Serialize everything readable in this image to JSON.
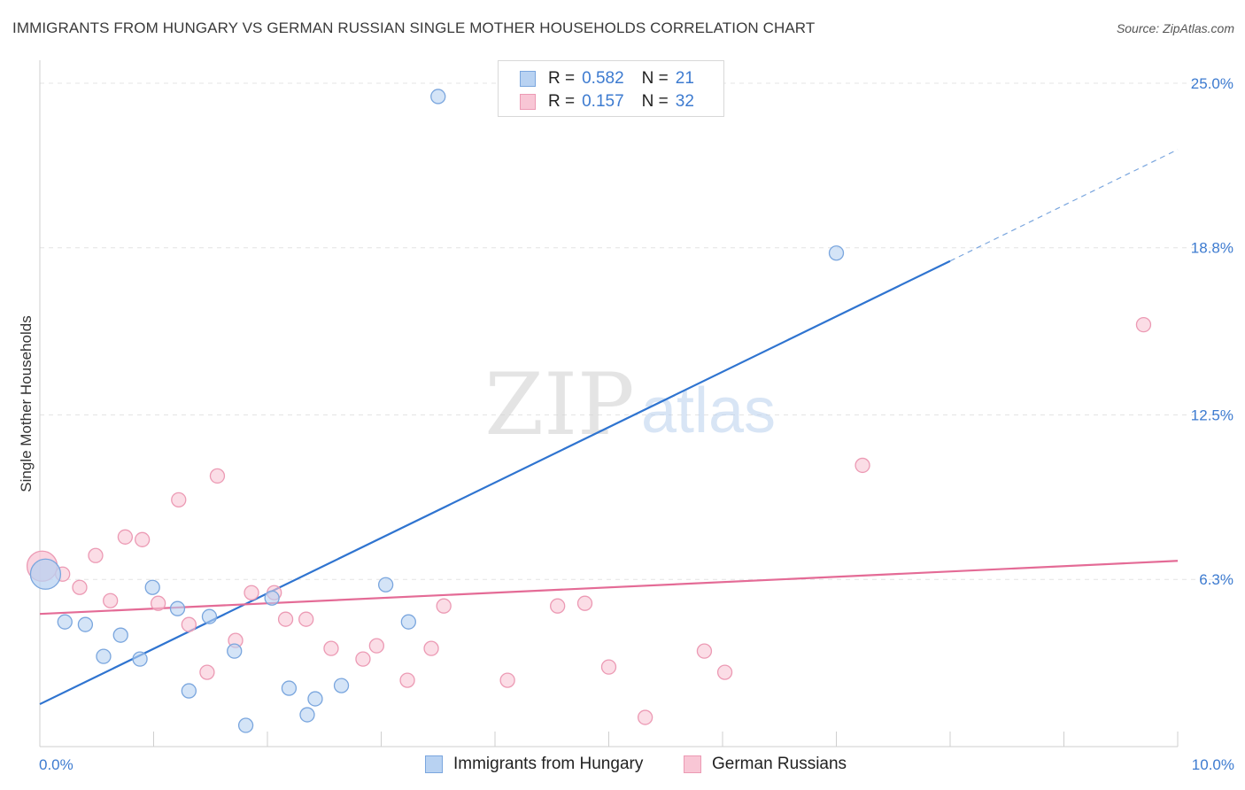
{
  "header": {
    "title": "IMMIGRANTS FROM HUNGARY VS GERMAN RUSSIAN SINGLE MOTHER HOUSEHOLDS CORRELATION CHART",
    "source": "Source: ZipAtlas.com"
  },
  "watermark": {
    "zip": "ZIP",
    "atlas": "atlas"
  },
  "legend": {
    "rows": [
      {
        "r_label": "R =",
        "r_value": "0.582",
        "n_label": "N =",
        "n_value": "21"
      },
      {
        "r_label": "R =",
        "r_value": "0.157",
        "n_label": "N =",
        "n_value": "32"
      }
    ]
  },
  "bottom_legend": {
    "items": [
      "Immigrants from Hungary",
      "German Russians"
    ]
  },
  "colors": {
    "blue_fill": "#b8d2f2",
    "blue_stroke": "#7aa6de",
    "blue_line": "#2f74d0",
    "pink_fill": "#f8c6d5",
    "pink_stroke": "#ec9ab4",
    "pink_line": "#e46b96",
    "tick_text": "#3d7bd0"
  },
  "chart_data": {
    "type": "scatter",
    "title": "IMMIGRANTS FROM HUNGARY VS GERMAN RUSSIAN SINGLE MOTHER HOUSEHOLDS CORRELATION CHART",
    "xlabel": "",
    "ylabel": "Single Mother Households",
    "xlim": [
      0,
      10
    ],
    "ylim": [
      0,
      25.5
    ],
    "x_tick_labels": [
      "0.0%",
      "10.0%"
    ],
    "y_ticks": [
      6.3,
      12.5,
      18.8,
      25.0
    ],
    "y_tick_labels": [
      "6.3%",
      "12.5%",
      "18.8%",
      "25.0%"
    ],
    "series": [
      {
        "name": "Immigrants from Hungary",
        "r": 0.582,
        "n": 21,
        "points": [
          {
            "x": 0.05,
            "y": 6.5,
            "big": true
          },
          {
            "x": 0.22,
            "y": 4.7
          },
          {
            "x": 0.4,
            "y": 4.6
          },
          {
            "x": 0.56,
            "y": 3.4
          },
          {
            "x": 0.71,
            "y": 4.2
          },
          {
            "x": 0.88,
            "y": 3.3
          },
          {
            "x": 0.99,
            "y": 6.0
          },
          {
            "x": 1.21,
            "y": 5.2
          },
          {
            "x": 1.31,
            "y": 2.1
          },
          {
            "x": 1.49,
            "y": 4.9
          },
          {
            "x": 1.71,
            "y": 3.6
          },
          {
            "x": 1.81,
            "y": 0.8
          },
          {
            "x": 2.04,
            "y": 5.6
          },
          {
            "x": 2.19,
            "y": 2.2
          },
          {
            "x": 2.35,
            "y": 1.2
          },
          {
            "x": 2.42,
            "y": 1.8
          },
          {
            "x": 2.65,
            "y": 2.3
          },
          {
            "x": 3.04,
            "y": 6.1
          },
          {
            "x": 3.24,
            "y": 4.7
          },
          {
            "x": 3.5,
            "y": 24.5
          },
          {
            "x": 7.0,
            "y": 18.6
          }
        ],
        "trend": {
          "x0": 0.0,
          "y0": 1.6,
          "x1": 8.0,
          "y1": 18.3,
          "dash_to_x": 10.0,
          "dash_to_y": 22.5
        }
      },
      {
        "name": "German Russians",
        "r": 0.157,
        "n": 32,
        "points": [
          {
            "x": 0.02,
            "y": 6.8,
            "big": true
          },
          {
            "x": 0.2,
            "y": 6.5
          },
          {
            "x": 0.35,
            "y": 6.0
          },
          {
            "x": 0.49,
            "y": 7.2
          },
          {
            "x": 0.62,
            "y": 5.5
          },
          {
            "x": 0.75,
            "y": 7.9
          },
          {
            "x": 0.9,
            "y": 7.8
          },
          {
            "x": 1.04,
            "y": 5.4
          },
          {
            "x": 1.22,
            "y": 9.3
          },
          {
            "x": 1.31,
            "y": 4.6
          },
          {
            "x": 1.47,
            "y": 2.8
          },
          {
            "x": 1.56,
            "y": 10.2
          },
          {
            "x": 1.72,
            "y": 4.0
          },
          {
            "x": 1.86,
            "y": 5.8
          },
          {
            "x": 2.06,
            "y": 5.8
          },
          {
            "x": 2.16,
            "y": 4.8
          },
          {
            "x": 2.34,
            "y": 4.8
          },
          {
            "x": 2.56,
            "y": 3.7
          },
          {
            "x": 2.84,
            "y": 3.3
          },
          {
            "x": 2.96,
            "y": 3.8
          },
          {
            "x": 3.23,
            "y": 2.5
          },
          {
            "x": 3.44,
            "y": 3.7
          },
          {
            "x": 3.55,
            "y": 5.3
          },
          {
            "x": 4.11,
            "y": 2.5
          },
          {
            "x": 4.55,
            "y": 5.3
          },
          {
            "x": 4.79,
            "y": 5.4
          },
          {
            "x": 5.0,
            "y": 3.0
          },
          {
            "x": 5.32,
            "y": 1.1
          },
          {
            "x": 5.84,
            "y": 3.6
          },
          {
            "x": 6.02,
            "y": 2.8
          },
          {
            "x": 7.23,
            "y": 10.6
          },
          {
            "x": 9.7,
            "y": 15.9
          }
        ],
        "trend": {
          "x0": 0.0,
          "y0": 5.0,
          "x1": 10.0,
          "y1": 7.0
        }
      }
    ]
  }
}
